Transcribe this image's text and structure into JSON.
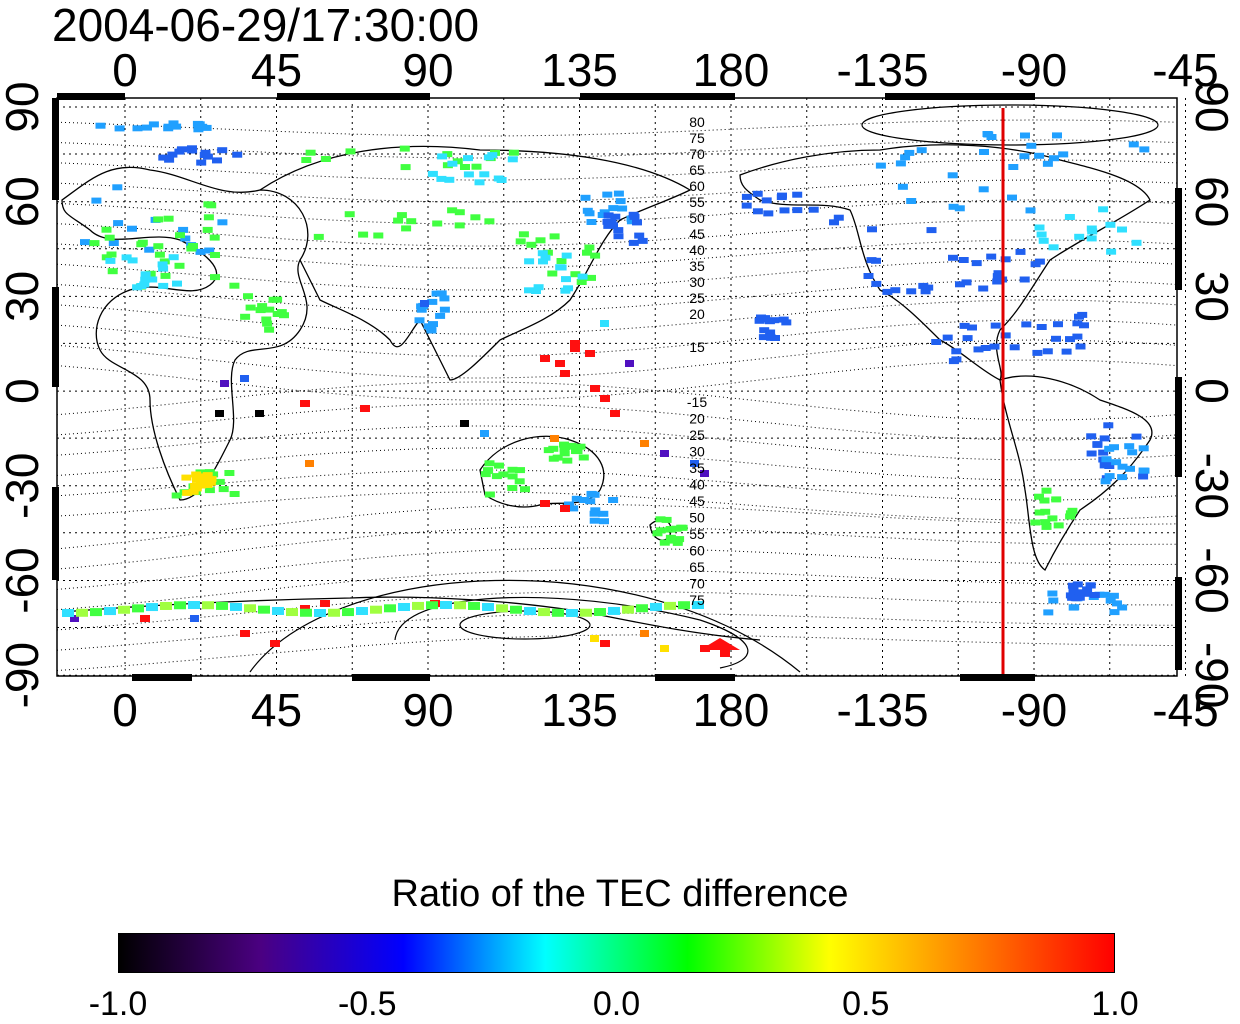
{
  "timestamp": "2004-06-29/17:30:00",
  "map": {
    "lon_ticks": [
      "0",
      "45",
      "90",
      "135",
      "180",
      "-135",
      "-90",
      "-45"
    ],
    "lat_ticks": [
      "90",
      "60",
      "30",
      "0",
      "-30",
      "-60",
      "-90"
    ],
    "contour_labels_north": [
      "80",
      "75",
      "70",
      "65",
      "60",
      "55",
      "50",
      "45",
      "40",
      "35",
      "30",
      "25",
      "20",
      "15"
    ],
    "contour_labels_south": [
      "-15",
      "20",
      "25",
      "30",
      "35",
      "40",
      "45",
      "50",
      "55",
      "60",
      "65",
      "70",
      "75"
    ],
    "meridian_marker_lon": "-87",
    "colors": {
      "marker": "#e00000",
      "coast": "#000000"
    }
  },
  "colorbar": {
    "title": "Ratio of the TEC difference",
    "ticks": [
      "-1.0",
      "-0.5",
      "0.0",
      "0.5",
      "1.0"
    ],
    "range": [
      -1.0,
      1.0
    ],
    "colors": [
      "#000000",
      "#4b0082",
      "#0000ff",
      "#00ffff",
      "#00ff00",
      "#ffff00",
      "#ff7f00",
      "#ff0000"
    ]
  }
}
